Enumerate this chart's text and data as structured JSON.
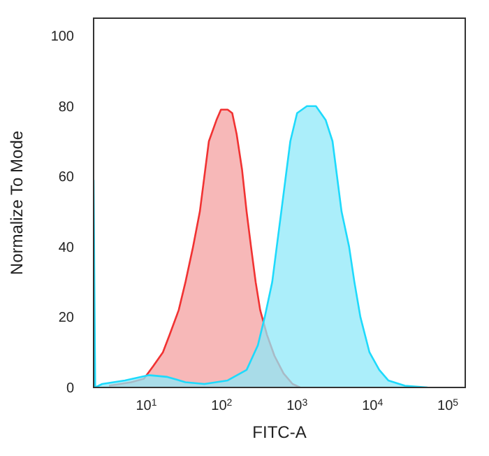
{
  "chart_data": {
    "type": "area",
    "xlabel": "FITC-A",
    "ylabel": "Normalize To Mode",
    "log": "x",
    "xlim": [
      2,
      170000
    ],
    "ylim": [
      0,
      105
    ],
    "xticks": [
      {
        "value": 10,
        "label": "10$^{1}$"
      },
      {
        "value": 100,
        "label": "10$^{2}$"
      },
      {
        "value": 1000,
        "label": "10$^{3}$"
      },
      {
        "value": 10000,
        "label": "10$^{4}$"
      },
      {
        "value": 100000,
        "label": "10$^{5}$"
      }
    ],
    "yticks": [
      0,
      20,
      40,
      60,
      80,
      100
    ],
    "grid": false,
    "series": [
      {
        "color": "#f4a0a0",
        "x": [
          3.2,
          6.3,
          9.3,
          12.3,
          16.6,
          20.4,
          26.9,
          33.1,
          41.7,
          51.3,
          58.9,
          67.6,
          85.1,
          97.7,
          120,
          138,
          158,
          186,
          214,
          245,
          282,
          324,
          398,
          501,
          661,
          871,
          1096
        ],
        "values": [
          0.5,
          1.5,
          2.5,
          6,
          10,
          15,
          22,
          30,
          40,
          50,
          60,
          70,
          76,
          79,
          79,
          78,
          72,
          62,
          50,
          40,
          30,
          22,
          15,
          9,
          4,
          1,
          0
        ]
      },
      {
        "color": "#8fe8f8",
        "x": [
          2,
          2.1,
          2.6,
          5.2,
          10.7,
          19,
          33,
          59,
          120,
          214,
          302,
          372,
          468,
          537,
          617,
          708,
          813,
          1000,
          1349,
          1778,
          2399,
          2951,
          3388,
          3890,
          4898,
          5754,
          6918,
          9120,
          12300,
          16200,
          26900,
          53700
        ],
        "values": [
          59,
          0,
          1,
          2,
          3.5,
          3,
          1.5,
          1,
          2,
          5,
          12,
          20,
          30,
          40,
          50,
          60,
          70,
          78,
          80,
          80,
          76,
          70,
          60,
          50,
          40,
          30,
          20,
          10,
          5,
          2,
          0.5,
          0
        ]
      }
    ]
  }
}
